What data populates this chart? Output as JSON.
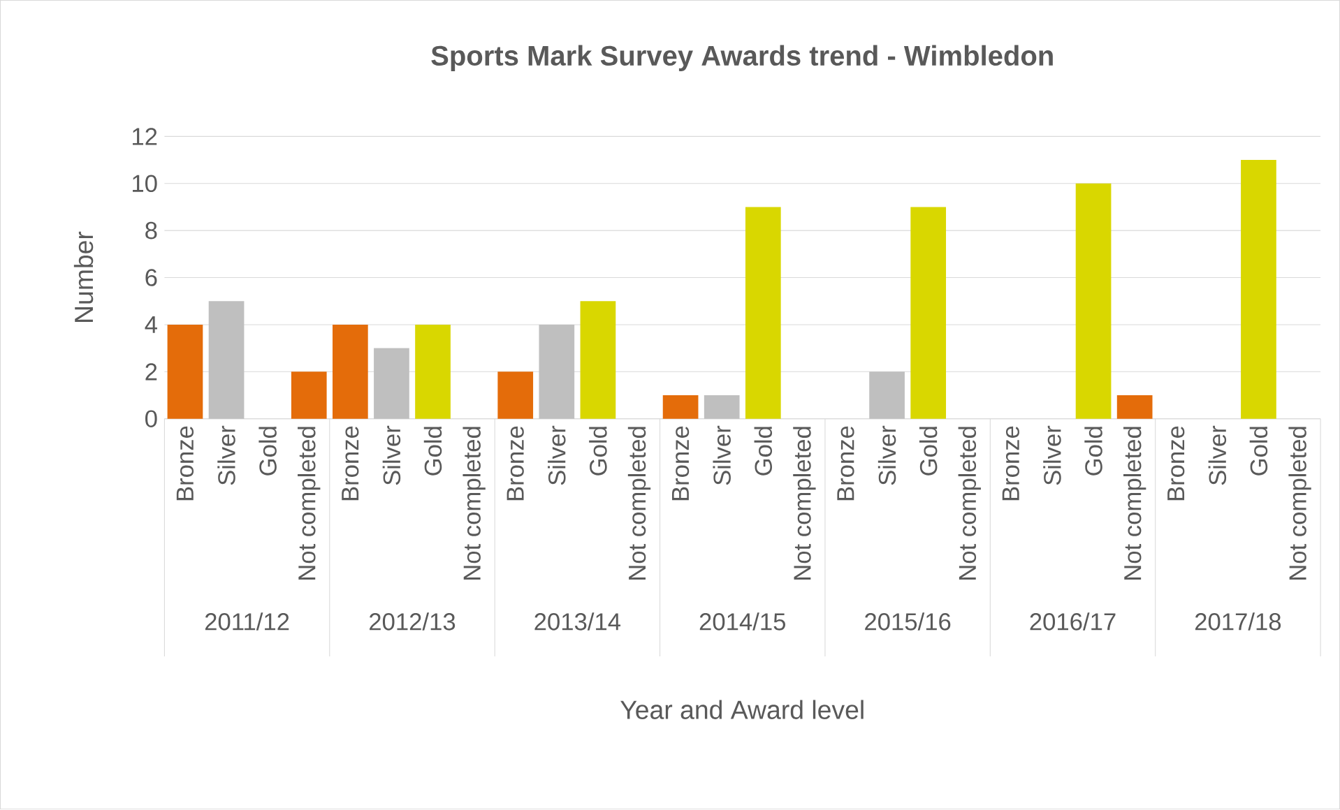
{
  "chart_data": {
    "type": "bar",
    "title": "Sports Mark Survey Awards trend - Wimbledon",
    "xlabel": "Year and Award level",
    "ylabel": "Number",
    "categories": [
      "Bronze",
      "Silver",
      "Gold",
      "Not completed",
      "Bronze",
      "Silver",
      "Gold",
      "Not completed",
      "Bronze",
      "Silver",
      "Gold",
      "Not completed",
      "Bronze",
      "Silver",
      "Gold",
      "Not completed",
      "Bronze",
      "Silver",
      "Gold",
      "Not completed",
      "Bronze",
      "Silver",
      "Gold",
      "Not completed",
      "Bronze",
      "Silver",
      "Gold",
      "Not completed"
    ],
    "values": [
      4,
      5,
      0,
      2,
      4,
      3,
      4,
      0,
      2,
      4,
      5,
      0,
      1,
      1,
      9,
      0,
      0,
      2,
      9,
      0,
      0,
      0,
      10,
      1,
      0,
      0,
      11,
      0
    ],
    "colors": [
      "#e46c0a",
      "#bfbfbf",
      "#d9d700",
      "#e46c0a",
      "#e46c0a",
      "#bfbfbf",
      "#d9d700",
      "#e46c0a",
      "#e46c0a",
      "#bfbfbf",
      "#d9d700",
      "#e46c0a",
      "#e46c0a",
      "#bfbfbf",
      "#d9d700",
      "#e46c0a",
      "#e46c0a",
      "#bfbfbf",
      "#d9d700",
      "#e46c0a",
      "#e46c0a",
      "#bfbfbf",
      "#d9d700",
      "#e46c0a",
      "#e46c0a",
      "#bfbfbf",
      "#d9d700",
      "#e46c0a"
    ],
    "ylim": [
      0,
      12
    ],
    "yticks": [
      0,
      2,
      4,
      6,
      8,
      10,
      12
    ],
    "grid": "y",
    "annotations": [
      "2011/12",
      "2012/13",
      "2013/14",
      "2014/15",
      "2015/16",
      "2016/17",
      "2017/18"
    ]
  }
}
